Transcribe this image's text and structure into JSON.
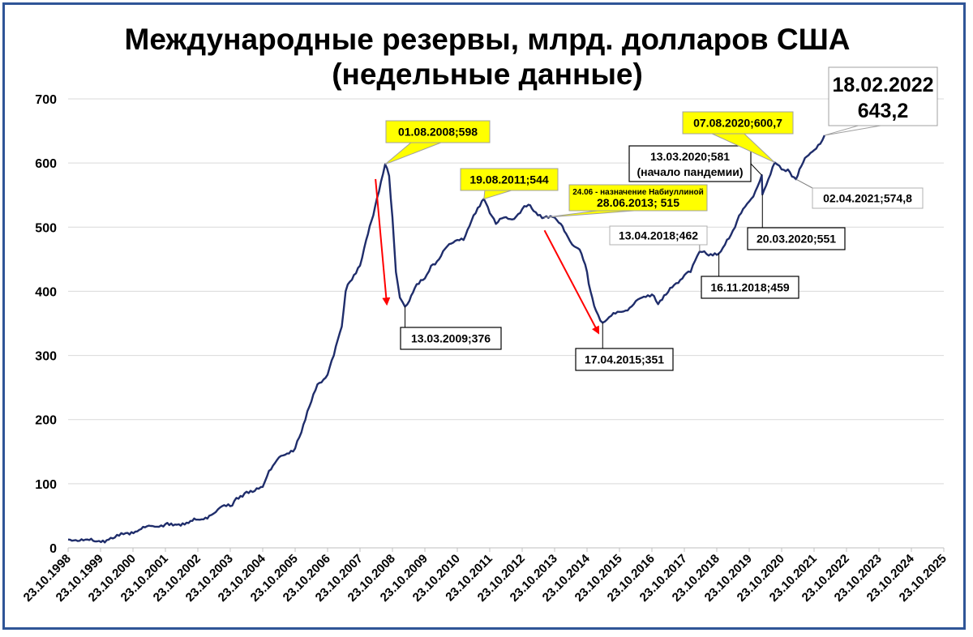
{
  "chart_data": {
    "type": "line",
    "title_line1": "Международные резервы, млрд. долларов США",
    "title_line2": "(недельные данные)",
    "xlabel": "",
    "ylabel": "",
    "ylim": [
      0,
      700
    ],
    "yticks": [
      0,
      100,
      200,
      300,
      400,
      500,
      600,
      700
    ],
    "grid": true,
    "legend": "none",
    "line_color": "#1f2d6b",
    "x_tick_labels": [
      "23.10.1998",
      "23.10.1999",
      "23.10.2000",
      "23.10.2001",
      "23.10.2002",
      "23.10.2003",
      "23.10.2004",
      "23.10.2005",
      "23.10.2006",
      "23.10.2007",
      "23.10.2008",
      "23.10.2009",
      "23.10.2010",
      "23.10.2011",
      "23.10.2012",
      "23.10.2013",
      "23.10.2014",
      "23.10.2015",
      "23.10.2016",
      "23.10.2017",
      "23.10.2018",
      "23.10.2019",
      "23.10.2020",
      "23.10.2021",
      "23.10.2022",
      "23.10.2023",
      "23.10.2024",
      "23.10.2025"
    ],
    "series": [
      {
        "points": [
          [
            "1998-10-23",
            13
          ],
          [
            "1999-03-01",
            11
          ],
          [
            "1999-08-01",
            11
          ],
          [
            "2000-01-01",
            12
          ],
          [
            "2000-04-01",
            16
          ],
          [
            "2000-08-01",
            23
          ],
          [
            "2001-01-01",
            28
          ],
          [
            "2001-06-01",
            34
          ],
          [
            "2001-10-23",
            37
          ],
          [
            "2002-03-01",
            36
          ],
          [
            "2002-08-01",
            42
          ],
          [
            "2002-10-23",
            44
          ],
          [
            "2003-03-01",
            50
          ],
          [
            "2003-07-01",
            63
          ],
          [
            "2003-10-23",
            65
          ],
          [
            "2004-01-01",
            78
          ],
          [
            "2004-04-01",
            85
          ],
          [
            "2004-07-01",
            87
          ],
          [
            "2004-10-23",
            95
          ],
          [
            "2005-01-01",
            120
          ],
          [
            "2005-04-01",
            137
          ],
          [
            "2005-07-01",
            145
          ],
          [
            "2005-10-23",
            155
          ],
          [
            "2006-01-01",
            180
          ],
          [
            "2006-04-01",
            220
          ],
          [
            "2006-07-01",
            255
          ],
          [
            "2006-10-23",
            270
          ],
          [
            "2007-01-01",
            300
          ],
          [
            "2007-04-01",
            345
          ],
          [
            "2007-05-15",
            400
          ],
          [
            "2007-07-01",
            415
          ],
          [
            "2007-10-23",
            440
          ],
          [
            "2008-01-01",
            480
          ],
          [
            "2008-03-01",
            510
          ],
          [
            "2008-05-01",
            545
          ],
          [
            "2008-08-01",
            598
          ],
          [
            "2008-09-15",
            580
          ],
          [
            "2008-10-23",
            515
          ],
          [
            "2008-12-01",
            430
          ],
          [
            "2009-01-15",
            390
          ],
          [
            "2009-03-13",
            376
          ],
          [
            "2009-05-01",
            385
          ],
          [
            "2009-07-01",
            405
          ],
          [
            "2009-10-23",
            420
          ],
          [
            "2010-01-01",
            440
          ],
          [
            "2010-04-01",
            450
          ],
          [
            "2010-07-01",
            470
          ],
          [
            "2010-10-23",
            480
          ],
          [
            "2011-01-01",
            480
          ],
          [
            "2011-04-01",
            510
          ],
          [
            "2011-08-19",
            544
          ],
          [
            "2011-10-23",
            522
          ],
          [
            "2012-01-01",
            505
          ],
          [
            "2012-04-01",
            515
          ],
          [
            "2012-07-01",
            512
          ],
          [
            "2012-10-23",
            528
          ],
          [
            "2013-01-01",
            535
          ],
          [
            "2013-03-01",
            525
          ],
          [
            "2013-06-28",
            515
          ],
          [
            "2013-10-23",
            515
          ],
          [
            "2014-01-01",
            505
          ],
          [
            "2014-03-01",
            490
          ],
          [
            "2014-06-01",
            470
          ],
          [
            "2014-08-01",
            465
          ],
          [
            "2014-10-23",
            430
          ],
          [
            "2014-12-01",
            400
          ],
          [
            "2015-02-01",
            370
          ],
          [
            "2015-04-17",
            351
          ],
          [
            "2015-07-01",
            360
          ],
          [
            "2015-10-23",
            368
          ],
          [
            "2016-01-01",
            370
          ],
          [
            "2016-04-01",
            380
          ],
          [
            "2016-07-01",
            390
          ],
          [
            "2016-10-23",
            395
          ],
          [
            "2017-01-01",
            380
          ],
          [
            "2017-04-01",
            395
          ],
          [
            "2017-07-01",
            410
          ],
          [
            "2017-10-23",
            425
          ],
          [
            "2018-01-01",
            430
          ],
          [
            "2018-04-13",
            462
          ],
          [
            "2018-07-01",
            458
          ],
          [
            "2018-11-16",
            459
          ],
          [
            "2019-01-01",
            468
          ],
          [
            "2019-04-01",
            488
          ],
          [
            "2019-07-01",
            518
          ],
          [
            "2019-10-23",
            540
          ],
          [
            "2020-01-01",
            556
          ],
          [
            "2020-03-13",
            581
          ],
          [
            "2020-03-20",
            551
          ],
          [
            "2020-05-01",
            565
          ],
          [
            "2020-08-07",
            600.7
          ],
          [
            "2020-10-23",
            590
          ],
          [
            "2021-01-01",
            590
          ],
          [
            "2021-04-02",
            574.8
          ],
          [
            "2021-06-01",
            595
          ],
          [
            "2021-08-01",
            610
          ],
          [
            "2021-10-23",
            620
          ],
          [
            "2022-01-01",
            630
          ],
          [
            "2022-02-18",
            643.2
          ]
        ]
      }
    ],
    "annotations": [
      {
        "text": "01.08.2008;598",
        "style": "yellow",
        "x": "2008-08-01",
        "y": 598
      },
      {
        "text": "13.03.2009;376",
        "style": "white",
        "x": "2009-03-13",
        "y": 376
      },
      {
        "text": "19.08.2011;544",
        "style": "yellow",
        "x": "2011-08-19",
        "y": 544
      },
      {
        "text1": "24.06 - назначение Набиуллиной",
        "text2": "28.06.2013; 515",
        "style": "yellow",
        "x": "2013-06-28",
        "y": 515
      },
      {
        "text": "17.04.2015;351",
        "style": "white",
        "x": "2015-04-17",
        "y": 351
      },
      {
        "text": "13.04.2018;462",
        "style": "plain",
        "x": "2018-04-13",
        "y": 462
      },
      {
        "text": "16.11.2018;459",
        "style": "white",
        "x": "2018-11-16",
        "y": 459
      },
      {
        "text1": "13.03.2020;581",
        "text2": "(начало пандемии)",
        "style": "white",
        "x": "2020-03-13",
        "y": 581
      },
      {
        "text": "20.03.2020;551",
        "style": "white",
        "x": "2020-03-20",
        "y": 551
      },
      {
        "text": "07.08.2020;600,7",
        "style": "yellow",
        "x": "2020-08-07",
        "y": 600.7
      },
      {
        "text": "02.04.2021;574,8",
        "style": "plain",
        "x": "2021-04-02",
        "y": 574.8
      },
      {
        "text1": "18.02.2022",
        "text2": "643,2",
        "style": "big",
        "x": "2022-02-18",
        "y": 643.2
      }
    ],
    "arrows": [
      {
        "from": [
          "2008-04-15",
          575
        ],
        "to": [
          "2008-08-20",
          380
        ]
      },
      {
        "from": [
          "2013-07-01",
          495
        ],
        "to": [
          "2015-03-01",
          335
        ]
      }
    ]
  }
}
